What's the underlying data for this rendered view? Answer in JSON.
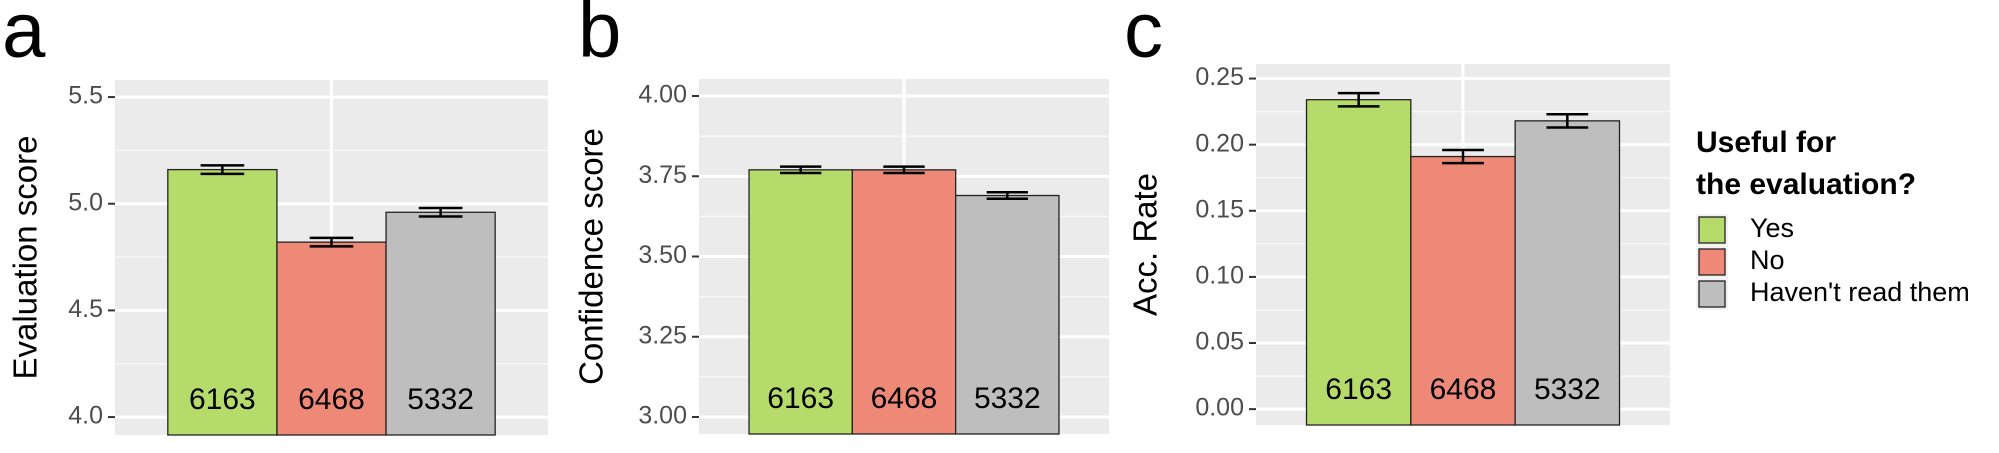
{
  "chart_data": [
    {
      "type": "bar",
      "panel": "a",
      "ylabel": "Evaluation score",
      "values": [
        5.16,
        4.82,
        4.96
      ],
      "errors": [
        0.02,
        0.02,
        0.02
      ],
      "counts": [
        6163,
        6468,
        5332
      ],
      "ylim": [
        3.916,
        5.58
      ],
      "yticks": [
        {
          "value": 4.0,
          "label": "4.0"
        },
        4.5,
        {
          "value": 5.0,
          "label": "5.0"
        },
        5.5
      ],
      "grid": true
    },
    {
      "type": "bar",
      "panel": "b",
      "ylabel": "Confidence score",
      "values": [
        3.77,
        3.77,
        3.69
      ],
      "errors": [
        0.01,
        0.01,
        0.01
      ],
      "counts": [
        6163,
        6468,
        5332
      ],
      "ylim": [
        2.947,
        4.053
      ],
      "yticks": [
        {
          "value": 3.0,
          "label": "3.00"
        },
        3.25,
        {
          "value": 3.5,
          "label": "3.50"
        },
        3.75,
        {
          "value": 4.0,
          "label": "4.00"
        }
      ],
      "grid": true
    },
    {
      "type": "bar",
      "panel": "c",
      "ylabel": "Acc. Rate",
      "values": [
        0.234,
        0.191,
        0.218
      ],
      "errors": [
        0.005,
        0.005,
        0.005
      ],
      "counts": [
        6163,
        6468,
        5332
      ],
      "ylim": [
        -0.012,
        0.261
      ],
      "yticks": [
        {
          "value": 0,
          "label": "0.00"
        },
        0.05,
        {
          "value": 0.1,
          "label": "0.10"
        },
        0.15,
        {
          "value": 0.2,
          "label": "0.20"
        },
        0.25
      ],
      "grid": true
    }
  ],
  "legend": {
    "title_lines": [
      "Useful for",
      "the evaluation?"
    ],
    "items": [
      {
        "name": "Yes",
        "color": "#b5dc6a"
      },
      {
        "name": "No",
        "color": "#ee8877"
      },
      {
        "name": "Haven't read them",
        "color": "#bebebe"
      }
    ]
  }
}
